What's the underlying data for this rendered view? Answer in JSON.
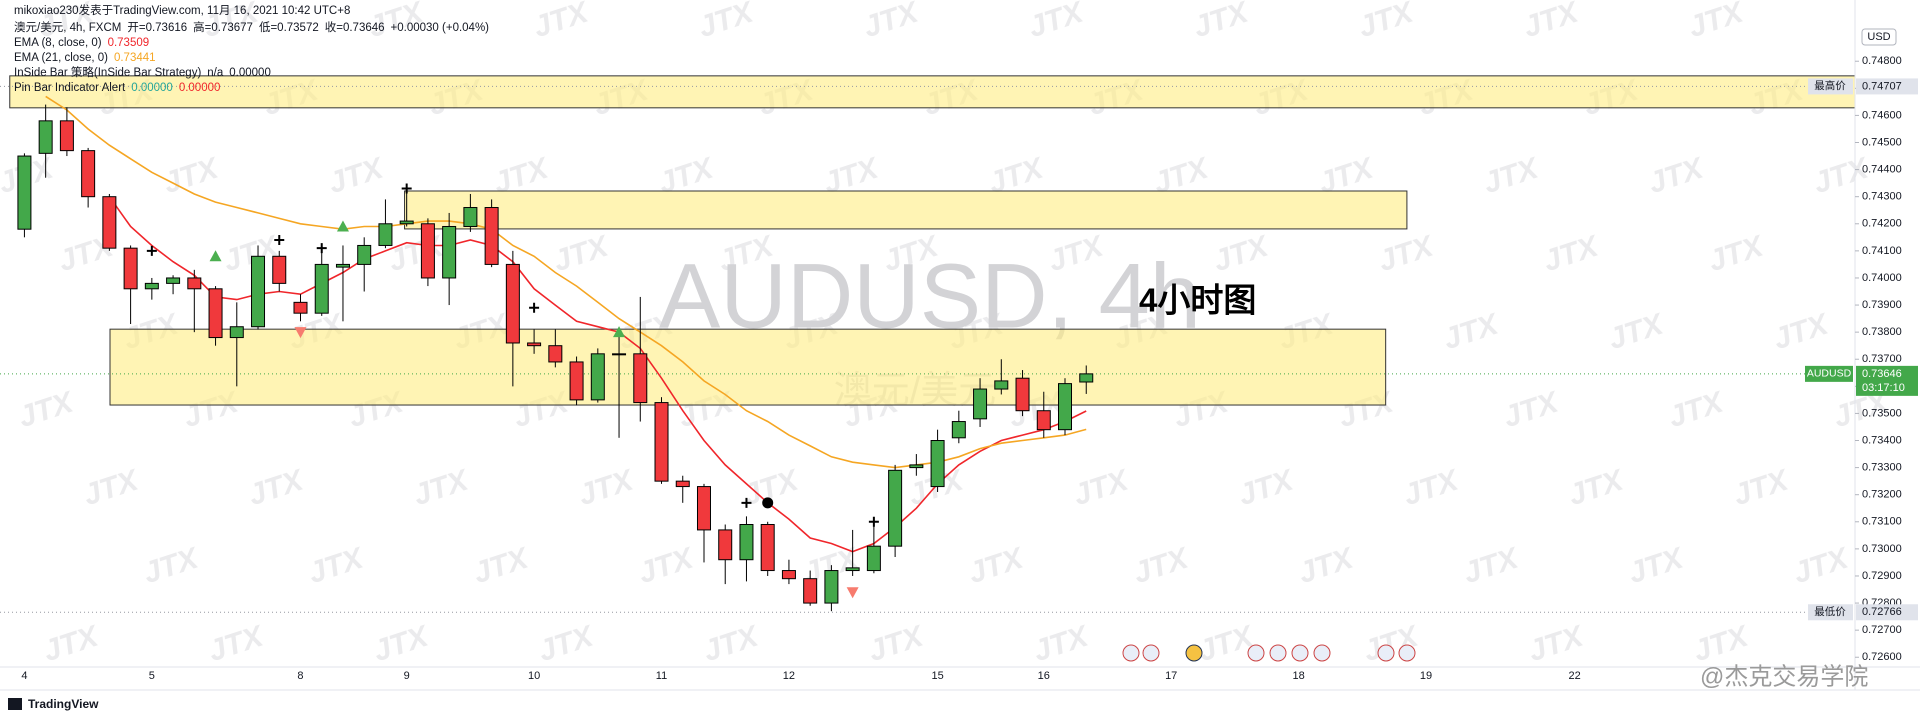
{
  "chart_data": {
    "type": "candlestick",
    "header": "mikoxiao230发表于TradingView.com, 11月 16, 2021 10:42 UTC+8",
    "title": "澳元/美元, 4h, FXCM",
    "ohlc_labels": [
      "开=0.73616",
      "高=0.73677",
      "低=0.73572",
      "收=0.73646",
      "+0.00030 (+0.04%)"
    ],
    "up_color": "#43a84a",
    "down_color": "#f0393c",
    "open": [
      0.7418,
      0.7446,
      0.7458,
      0.7447,
      0.743,
      0.7411,
      0.7396,
      0.7398,
      0.74,
      0.7396,
      0.7378,
      0.7382,
      0.7408,
      0.7391,
      0.7387,
      0.7404,
      0.7405,
      0.7412,
      0.742,
      0.742,
      0.74,
      0.7419,
      0.7426,
      0.7405,
      0.7376,
      0.7375,
      0.7369,
      0.7355,
      0.7372,
      0.7372,
      0.7354,
      0.7325,
      0.7323,
      0.7307,
      0.7296,
      0.7309,
      0.7292,
      0.7289,
      0.728,
      0.7292,
      0.7292,
      0.7301,
      0.733,
      0.7323,
      0.7341,
      0.7348,
      0.7359,
      0.7363,
      0.7351,
      0.7344,
      0.73616
    ],
    "high": [
      0.7446,
      0.7464,
      0.7463,
      0.7448,
      0.7431,
      0.7412,
      0.74,
      0.7401,
      0.7403,
      0.7397,
      0.7391,
      0.7412,
      0.741,
      0.7394,
      0.741,
      0.7412,
      0.7415,
      0.7429,
      0.7432,
      0.7422,
      0.7424,
      0.7431,
      0.7429,
      0.741,
      0.7381,
      0.7381,
      0.7371,
      0.7374,
      0.7381,
      0.7393,
      0.7356,
      0.7327,
      0.7324,
      0.7309,
      0.7312,
      0.731,
      0.7296,
      0.7292,
      0.7294,
      0.7307,
      0.731,
      0.7331,
      0.7335,
      0.7344,
      0.7351,
      0.7363,
      0.737,
      0.7366,
      0.7358,
      0.7363,
      0.73677
    ],
    "low": [
      0.7415,
      0.7437,
      0.7445,
      0.7426,
      0.741,
      0.7383,
      0.7392,
      0.7394,
      0.738,
      0.7375,
      0.736,
      0.7381,
      0.7395,
      0.7384,
      0.7386,
      0.7384,
      0.7395,
      0.7411,
      0.7419,
      0.7397,
      0.739,
      0.7417,
      0.7404,
      0.736,
      0.7372,
      0.7367,
      0.7353,
      0.7354,
      0.7341,
      0.7347,
      0.7324,
      0.7317,
      0.7295,
      0.7287,
      0.7288,
      0.729,
      0.7287,
      0.7279,
      0.7277,
      0.729,
      0.7291,
      0.7297,
      0.7327,
      0.7321,
      0.7339,
      0.7345,
      0.7357,
      0.7349,
      0.7341,
      0.7342,
      0.73572
    ],
    "close": [
      0.7445,
      0.7458,
      0.7447,
      0.743,
      0.7411,
      0.7396,
      0.7398,
      0.74,
      0.7396,
      0.7378,
      0.7382,
      0.7408,
      0.7398,
      0.7387,
      0.7405,
      0.7405,
      0.7412,
      0.742,
      0.7421,
      0.74,
      0.7419,
      0.7426,
      0.7405,
      0.7376,
      0.7375,
      0.7369,
      0.7355,
      0.7372,
      0.7372,
      0.7354,
      0.7325,
      0.7323,
      0.7307,
      0.7296,
      0.7309,
      0.7292,
      0.7289,
      0.728,
      0.7292,
      0.7293,
      0.7301,
      0.7329,
      0.7331,
      0.734,
      0.7347,
      0.7359,
      0.7362,
      0.7351,
      0.7344,
      0.7361,
      0.73646
    ],
    "series": [
      {
        "name": "EMA (8, close, 0)",
        "value_label": "0.73509",
        "color": "#f0262b",
        "values": [
          null,
          null,
          null,
          null,
          0.743,
          0.7419,
          0.7412,
          0.7406,
          0.7401,
          0.7393,
          0.7392,
          0.7394,
          0.7395,
          0.7394,
          0.7398,
          0.7402,
          0.7407,
          0.741,
          0.7413,
          0.7412,
          0.7412,
          0.7414,
          0.7412,
          0.7406,
          0.7396,
          0.739,
          0.7384,
          0.7382,
          0.738,
          0.7374,
          0.7363,
          0.7351,
          0.734,
          0.7331,
          0.7324,
          0.7317,
          0.7311,
          0.7304,
          0.7302,
          0.7299,
          0.7302,
          0.7308,
          0.7315,
          0.7324,
          0.7331,
          0.7336,
          0.734,
          0.7342,
          0.7344,
          0.7347,
          0.73509
        ]
      },
      {
        "name": "EMA (21, close, 0)",
        "value_label": "0.73441",
        "color": "#f5a623",
        "values": [
          null,
          0.7467,
          0.7462,
          0.7455,
          0.7449,
          0.7444,
          0.7439,
          0.7435,
          0.7431,
          0.7428,
          0.7426,
          0.7424,
          0.7422,
          0.742,
          0.7419,
          0.7418,
          0.7419,
          0.7419,
          0.742,
          0.7421,
          0.7421,
          0.742,
          0.7418,
          0.7412,
          0.7408,
          0.7402,
          0.7397,
          0.7391,
          0.7385,
          0.738,
          0.7375,
          0.7369,
          0.7362,
          0.7357,
          0.7351,
          0.7347,
          0.7342,
          0.7338,
          0.7334,
          0.7332,
          0.7331,
          0.733,
          0.7331,
          0.7332,
          0.7334,
          0.7337,
          0.7339,
          0.734,
          0.7341,
          0.7342,
          0.73441
        ]
      }
    ],
    "indicators": [
      {
        "name": "InSide Bar 策略(InSide Bar Strategy)",
        "labels": [
          "n/a",
          "0.00000"
        ],
        "colors": [
          "#131722",
          "#131722"
        ]
      },
      {
        "name": "Pin Bar Indicator Alert",
        "labels": [
          "0.00000",
          "0.00000"
        ],
        "colors": [
          "#26a69a",
          "#f0262b"
        ]
      }
    ],
    "zones": [
      {
        "price": [
          0.74628,
          0.74746
        ],
        "x": [
          -0.69,
          86.2
        ]
      },
      {
        "price": [
          0.74181,
          0.74321
        ],
        "x": [
          17.9,
          65.1
        ]
      },
      {
        "price": [
          0.73531,
          0.73811
        ],
        "x": [
          4.03,
          64.1
        ]
      }
    ],
    "signals": [
      {
        "x": 9,
        "y": 0.7408,
        "shape": "triangle-up"
      },
      {
        "x": 15,
        "y": 0.7419,
        "shape": "triangle-up"
      },
      {
        "x": 28,
        "y": 0.738,
        "shape": "triangle-up"
      },
      {
        "x": 13,
        "y": 0.738,
        "shape": "triangle-down"
      },
      {
        "x": 39,
        "y": 0.7284,
        "shape": "triangle-down"
      },
      {
        "x": 6,
        "y": 0.741,
        "shape": "plus"
      },
      {
        "x": 12,
        "y": 0.7414,
        "shape": "plus"
      },
      {
        "x": 14,
        "y": 0.7411,
        "shape": "plus"
      },
      {
        "x": 18,
        "y": 0.7433,
        "shape": "plus"
      },
      {
        "x": 24,
        "y": 0.7389,
        "shape": "plus"
      },
      {
        "x": 34,
        "y": 0.7317,
        "shape": "plus"
      },
      {
        "x": 40,
        "y": 0.731,
        "shape": "plus"
      },
      {
        "x": 35,
        "y": 0.7317,
        "shape": "dot"
      }
    ],
    "price_lines": [
      {
        "value": 0.74707,
        "label": "0.74707",
        "tag": "最高价",
        "color": "#e0e3eb"
      },
      {
        "value": 0.73646,
        "label": "0.73646",
        "tag": "AUDUSD",
        "countdown": "03:17:10",
        "color": "#43a84a"
      },
      {
        "value": 0.72766,
        "label": "0.72766",
        "tag": "最低价",
        "color": "#e0e3eb"
      }
    ],
    "xlim": [
      -1.15,
      86.2
    ],
    "xticks": [
      {
        "value": 0,
        "label": "4"
      },
      {
        "value": 6,
        "label": "5"
      },
      {
        "value": 13,
        "label": "8"
      },
      {
        "value": 18,
        "label": "9"
      },
      {
        "value": 24,
        "label": "10"
      },
      {
        "value": 30,
        "label": "11"
      },
      {
        "value": 36,
        "label": "12"
      },
      {
        "value": 43,
        "label": "15"
      },
      {
        "value": 48,
        "label": "16"
      },
      {
        "value": 54,
        "label": "17"
      },
      {
        "value": 60,
        "label": "18"
      },
      {
        "value": 66,
        "label": "19"
      },
      {
        "value": 73,
        "label": "22"
      }
    ],
    "ylim": [
      0.72564,
      0.75026
    ],
    "yticks": [
      {
        "value": 0.726,
        "label": "0.72600"
      },
      {
        "value": 0.727,
        "label": "0.72700"
      },
      {
        "value": 0.728,
        "label": "0.72800"
      },
      {
        "value": 0.729,
        "label": "0.72900"
      },
      {
        "value": 0.73,
        "label": "0.73000"
      },
      {
        "value": 0.731,
        "label": "0.73100"
      },
      {
        "value": 0.732,
        "label": "0.73200"
      },
      {
        "value": 0.733,
        "label": "0.73300"
      },
      {
        "value": 0.734,
        "label": "0.73400"
      },
      {
        "value": 0.735,
        "label": "0.73500"
      },
      {
        "value": 0.736,
        "label": "0.73600"
      },
      {
        "value": 0.737,
        "label": "0.73700"
      },
      {
        "value": 0.738,
        "label": "0.73800"
      },
      {
        "value": 0.739,
        "label": "0.73900"
      },
      {
        "value": 0.74,
        "label": "0.74000"
      },
      {
        "value": 0.741,
        "label": "0.74100"
      },
      {
        "value": 0.742,
        "label": "0.74200"
      },
      {
        "value": 0.743,
        "label": "0.74300"
      },
      {
        "value": 0.744,
        "label": "0.74400"
      },
      {
        "value": 0.745,
        "label": "0.74500"
      },
      {
        "value": 0.746,
        "label": "0.74600"
      },
      {
        "value": 0.747,
        "label": "0.74700"
      },
      {
        "value": 0.748,
        "label": "0.74800"
      }
    ],
    "grid": false,
    "currency": "USD",
    "watermark": "AUDUSD, 4h",
    "watermark_sub": "澳元/美元",
    "annotation": "4小时图",
    "brand_watermark": "JTX",
    "footer_logo": "TradingView",
    "credit": "@杰克交易学院"
  }
}
